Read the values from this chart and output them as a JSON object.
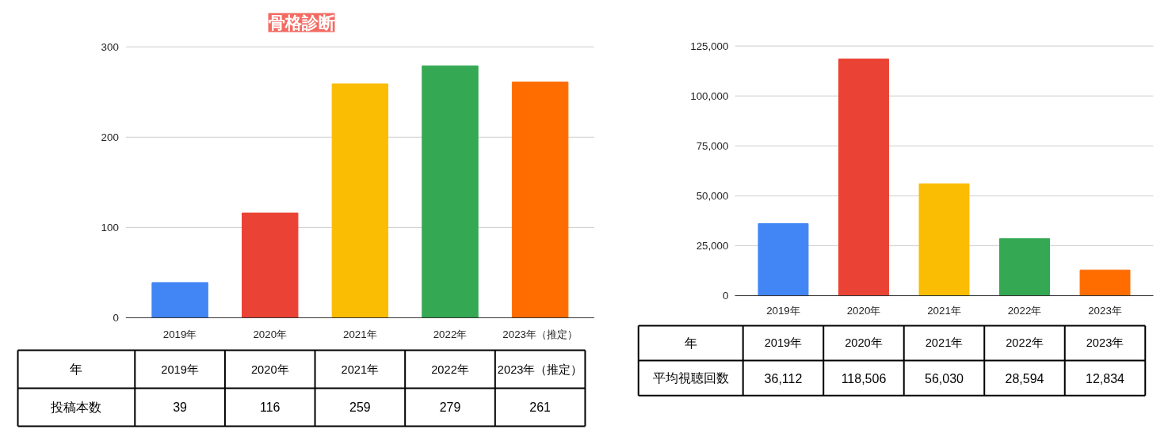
{
  "chart_data": [
    {
      "type": "bar",
      "title": "骨格診断",
      "annotations": [
        "年",
        "投稿本数"
      ],
      "categories": [
        "2019年",
        "2020年",
        "2021年",
        "2022年",
        "2023年（推定）"
      ],
      "values": [
        39,
        116,
        259,
        279,
        261
      ],
      "colors": [
        "#4285f4",
        "#ea4335",
        "#fbbc04",
        "#34a853",
        "#ff6d01"
      ],
      "value_labels": [
        "39",
        "116",
        "259",
        "279",
        "261"
      ],
      "ylim": [
        0,
        300
      ],
      "yticks": [
        0,
        100,
        200,
        300
      ],
      "grid": "y"
    },
    {
      "type": "bar",
      "annotations": [
        "年",
        "平均視聴回数"
      ],
      "categories": [
        "2019年",
        "2020年",
        "2021年",
        "2022年",
        "2023年"
      ],
      "values": [
        36112,
        118506,
        56030,
        28594,
        12834
      ],
      "colors": [
        "#4285f4",
        "#ea4335",
        "#fbbc04",
        "#34a853",
        "#ff6d01"
      ],
      "value_labels": [
        "36,112",
        "118,506",
        "56,030",
        "28,594",
        "12,834"
      ],
      "ylim": [
        0,
        125000
      ],
      "yticks": [
        0,
        {
          "value": 25000,
          "label": "25,000"
        },
        {
          "value": 50000,
          "label": "50,000"
        },
        {
          "value": 75000,
          "label": "75,000"
        },
        {
          "value": 100000,
          "label": "100,000"
        },
        {
          "value": 125000,
          "label": "125,000"
        }
      ],
      "grid": "y"
    }
  ]
}
